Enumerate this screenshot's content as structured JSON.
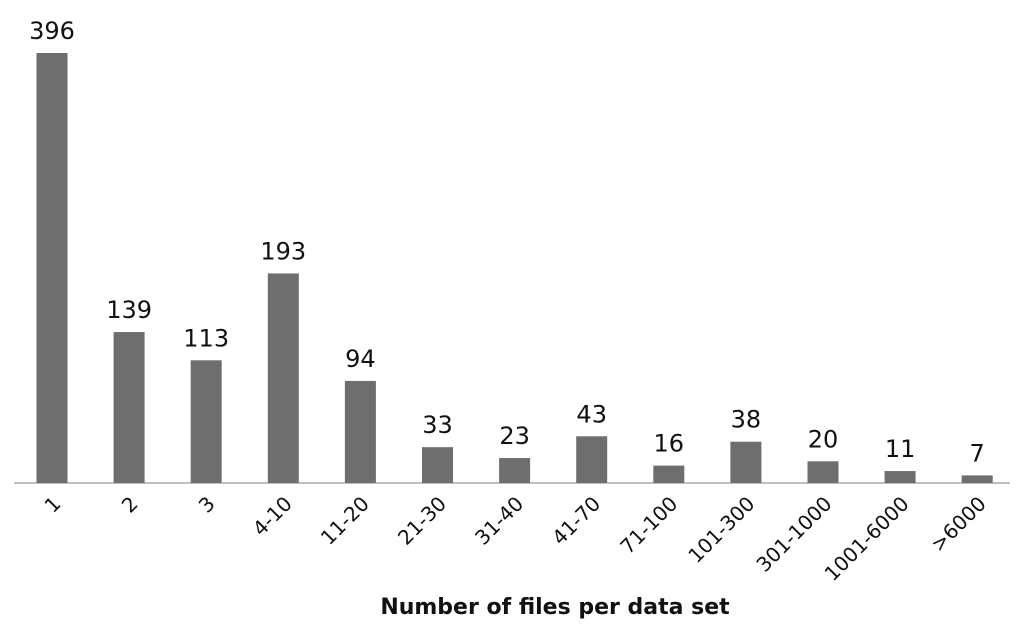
{
  "chart_data": {
    "type": "bar",
    "x_label": "Number of files per data set",
    "categories": [
      "1",
      "2",
      "3",
      "4-10",
      "11-20",
      "21-30",
      "31-40",
      "41-70",
      "71-100",
      "101-300",
      "301-1000",
      "1001-6000",
      ">6000"
    ],
    "values": [
      396,
      139,
      113,
      193,
      94,
      33,
      23,
      43,
      16,
      38,
      20,
      11,
      7
    ],
    "color": "#6e6e6e"
  }
}
